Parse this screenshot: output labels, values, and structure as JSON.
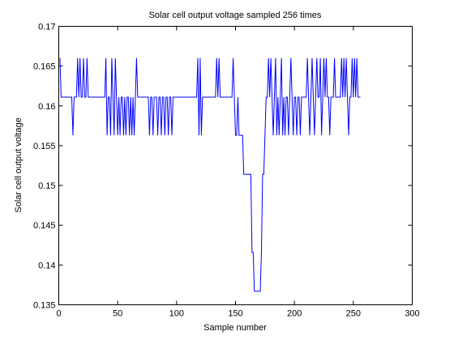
{
  "chart_data": {
    "type": "line",
    "title": "Solar cell output voltage sampled 256 times",
    "xlabel": "Sample number",
    "ylabel": "Solar cell output voltage",
    "color": "#0000ff",
    "xlim": [
      0,
      300
    ],
    "xticks": [
      0,
      50,
      100,
      150,
      200,
      250,
      300
    ],
    "ylim": [
      0.135,
      0.17
    ],
    "yticks": [
      0.135,
      0.14,
      0.145,
      0.15,
      0.155,
      0.16,
      0.165,
      0.17
    ],
    "values": [
      0.166,
      0.1611,
      0.1611,
      0.1611,
      0.1611,
      0.1611,
      0.1611,
      0.1611,
      0.1611,
      0.1611,
      0.1611,
      0.1563,
      0.1611,
      0.1611,
      0.1611,
      0.166,
      0.1611,
      0.166,
      0.1611,
      0.1611,
      0.166,
      0.1611,
      0.1611,
      0.166,
      0.1611,
      0.1611,
      0.1611,
      0.1611,
      0.1611,
      0.1611,
      0.1611,
      0.1611,
      0.1611,
      0.1611,
      0.1611,
      0.1611,
      0.1611,
      0.1611,
      0.1611,
      0.166,
      0.1563,
      0.1611,
      0.1611,
      0.1563,
      0.166,
      0.1611,
      0.1563,
      0.166,
      0.1611,
      0.1563,
      0.1611,
      0.1563,
      0.1611,
      0.1611,
      0.1563,
      0.1611,
      0.1563,
      0.1611,
      0.1611,
      0.1563,
      0.1611,
      0.1563,
      0.1611,
      0.1563,
      0.1611,
      0.166,
      0.1611,
      0.1611,
      0.1611,
      0.1611,
      0.1611,
      0.1611,
      0.1611,
      0.1611,
      0.1611,
      0.1611,
      0.1563,
      0.1611,
      0.1611,
      0.1563,
      0.1611,
      0.1611,
      0.1611,
      0.1563,
      0.1611,
      0.1611,
      0.1563,
      0.1611,
      0.1611,
      0.1563,
      0.1611,
      0.1611,
      0.1563,
      0.1611,
      0.1611,
      0.1563,
      0.1611,
      0.1611,
      0.1611,
      0.1611,
      0.1611,
      0.1611,
      0.1611,
      0.1611,
      0.1611,
      0.1611,
      0.1611,
      0.1611,
      0.1611,
      0.1611,
      0.1611,
      0.1611,
      0.1611,
      0.1611,
      0.1611,
      0.1611,
      0.1611,
      0.166,
      0.1563,
      0.166,
      0.1563,
      0.1611,
      0.1611,
      0.1611,
      0.1611,
      0.1611,
      0.1611,
      0.1611,
      0.1611,
      0.1611,
      0.1611,
      0.1611,
      0.1611,
      0.166,
      0.1611,
      0.166,
      0.1611,
      0.1611,
      0.1611,
      0.1611,
      0.1611,
      0.1611,
      0.1611,
      0.1611,
      0.1611,
      0.1611,
      0.1611,
      0.166,
      0.1611,
      0.1563,
      0.1563,
      0.1611,
      0.1563,
      0.1563,
      0.1563,
      0.1563,
      0.1514,
      0.1514,
      0.1514,
      0.1514,
      0.1514,
      0.1514,
      0.1514,
      0.1416,
      0.1416,
      0.1367,
      0.1367,
      0.1367,
      0.1367,
      0.1367,
      0.1367,
      0.1416,
      0.1514,
      0.1514,
      0.1563,
      0.1611,
      0.1611,
      0.166,
      0.1611,
      0.166,
      0.1611,
      0.1563,
      0.1611,
      0.166,
      0.1563,
      0.1611,
      0.1563,
      0.1611,
      0.166,
      0.1563,
      0.1611,
      0.1563,
      0.1611,
      0.1611,
      0.1563,
      0.1611,
      0.166,
      0.1611,
      0.1563,
      0.1611,
      0.1611,
      0.1563,
      0.1611,
      0.1611,
      0.1563,
      0.1611,
      0.1611,
      0.1611,
      0.1611,
      0.1611,
      0.166,
      0.1611,
      0.1563,
      0.1611,
      0.166,
      0.1611,
      0.1563,
      0.1611,
      0.166,
      0.1611,
      0.1611,
      0.166,
      0.1563,
      0.1611,
      0.166,
      0.1611,
      0.166,
      0.1611,
      0.1611,
      0.1563,
      0.1611,
      0.1611,
      0.1611,
      0.166,
      0.1611,
      0.1611,
      0.1611,
      0.1611,
      0.1611,
      0.166,
      0.1611,
      0.166,
      0.1611,
      0.166,
      0.1611,
      0.1563,
      0.1611,
      0.1611,
      0.166,
      0.1611,
      0.166,
      0.1611,
      0.166,
      0.1611,
      0.1611,
      0.1611
    ]
  }
}
